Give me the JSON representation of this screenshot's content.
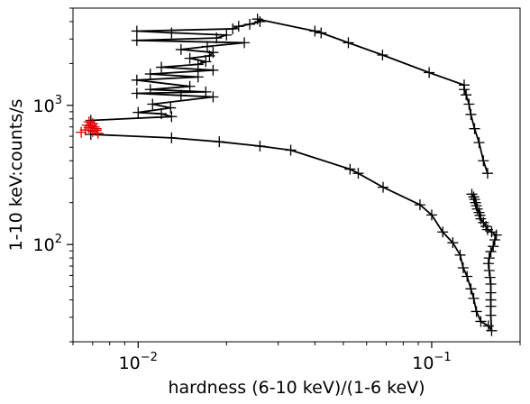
{
  "chart_data": {
    "type": "scatter",
    "xlabel": "hardness (6-10 keV)/(1-6 keV)",
    "ylabel": "1-10 keV:counts/s",
    "xscale": "log",
    "yscale": "log",
    "xlim": [
      0.006,
      0.2
    ],
    "ylim": [
      20,
      5000
    ],
    "grid": false,
    "x_ticks": [
      {
        "value": 0.01,
        "mantissa": "10",
        "exponent": "−2"
      },
      {
        "value": 0.1,
        "mantissa": "10",
        "exponent": "−1"
      }
    ],
    "y_ticks": [
      {
        "value": 100,
        "mantissa": "10",
        "exponent": "2"
      },
      {
        "value": 1000,
        "mantissa": "10",
        "exponent": "3"
      }
    ],
    "colors": {
      "main": "#000000",
      "highlight": "#e00000"
    },
    "series": [
      {
        "color": "#000000",
        "marker": "plus",
        "connected": true,
        "points": [
          [
            0.0069,
            619
          ],
          [
            0.013,
            584
          ],
          [
            0.0189,
            548
          ],
          [
            0.026,
            510
          ],
          [
            0.0331,
            477
          ],
          [
            0.0527,
            348
          ],
          [
            0.0562,
            325
          ],
          [
            0.0683,
            258
          ],
          [
            0.0912,
            193
          ],
          [
            0.1,
            163
          ],
          [
            0.109,
            123
          ],
          [
            0.118,
            103
          ],
          [
            0.125,
            84
          ],
          [
            0.128,
            68
          ],
          [
            0.132,
            59
          ],
          [
            0.136,
            48
          ],
          [
            0.139,
            41
          ],
          [
            0.142,
            33
          ],
          [
            0.147,
            28
          ],
          [
            0.156,
            26
          ],
          [
            0.16,
            24
          ],
          [
            0.159,
            31
          ],
          [
            0.159,
            36
          ],
          [
            0.159,
            40
          ],
          [
            0.159,
            45
          ],
          [
            0.159,
            52
          ],
          [
            0.158,
            58
          ],
          [
            0.157,
            65
          ],
          [
            0.156,
            73
          ],
          [
            0.157,
            80
          ],
          [
            0.159,
            89
          ],
          [
            0.162,
            97
          ],
          [
            0.164,
            108
          ],
          [
            0.166,
            117
          ],
          [
            0.16,
            123
          ],
          [
            0.155,
            128
          ],
          [
            0.153,
            135
          ],
          [
            0.15,
            144
          ],
          [
            0.147,
            153
          ],
          [
            0.146,
            162
          ],
          [
            0.145,
            170
          ],
          [
            0.143,
            180
          ],
          [
            0.142,
            190
          ],
          [
            0.141,
            200
          ],
          [
            0.14,
            211
          ],
          [
            0.139,
            220
          ],
          [
            0.137,
            230
          ]
        ]
      },
      {
        "color": "#000000",
        "marker": "plus",
        "connected": true,
        "points": [
          [
            0.0069,
            780
          ],
          [
            0.013,
            830
          ],
          [
            0.012,
            870
          ],
          [
            0.01,
            890
          ],
          [
            0.0129,
            960
          ],
          [
            0.0112,
            1020
          ],
          [
            0.018,
            1150
          ],
          [
            0.014,
            1180
          ],
          [
            0.0099,
            1220
          ],
          [
            0.017,
            1250
          ],
          [
            0.011,
            1300
          ],
          [
            0.015,
            1370
          ],
          [
            0.0099,
            1520
          ],
          [
            0.016,
            1600
          ],
          [
            0.011,
            1680
          ],
          [
            0.018,
            1790
          ],
          [
            0.012,
            1880
          ],
          [
            0.016,
            1970
          ],
          [
            0.017,
            2060
          ],
          [
            0.015,
            2180
          ],
          [
            0.0175,
            2270
          ],
          [
            0.018,
            2400
          ],
          [
            0.014,
            2520
          ],
          [
            0.0172,
            2650
          ],
          [
            0.023,
            2820
          ],
          [
            0.0099,
            2930
          ],
          [
            0.0185,
            3050
          ],
          [
            0.02,
            3200
          ],
          [
            0.013,
            3320
          ],
          [
            0.0099,
            3420
          ],
          [
            0.021,
            3550
          ],
          [
            0.022,
            3700
          ],
          [
            0.024,
            3830
          ],
          [
            0.026,
            4000
          ],
          [
            0.0255,
            4170
          ],
          [
            0.04,
            3420
          ],
          [
            0.042,
            3320
          ],
          [
            0.052,
            2820
          ],
          [
            0.068,
            2300
          ],
          [
            0.098,
            1720
          ],
          [
            0.129,
            1400
          ],
          [
            0.129,
            1300
          ],
          [
            0.131,
            1190
          ],
          [
            0.134,
            1020
          ],
          [
            0.136,
            860
          ],
          [
            0.14,
            680
          ],
          [
            0.145,
            540
          ],
          [
            0.15,
            400
          ],
          [
            0.155,
            325
          ]
        ]
      },
      {
        "color": "#e00000",
        "marker": "plus",
        "connected": false,
        "points": [
          [
            0.0064,
            640
          ],
          [
            0.0066,
            665
          ],
          [
            0.0068,
            690
          ],
          [
            0.0069,
            715
          ],
          [
            0.007,
            740
          ],
          [
            0.0071,
            700
          ],
          [
            0.0072,
            660
          ],
          [
            0.0073,
            630
          ],
          [
            0.007,
            650
          ],
          [
            0.0067,
            720
          ],
          [
            0.0068,
            760
          ],
          [
            0.0072,
            680
          ]
        ]
      }
    ]
  }
}
